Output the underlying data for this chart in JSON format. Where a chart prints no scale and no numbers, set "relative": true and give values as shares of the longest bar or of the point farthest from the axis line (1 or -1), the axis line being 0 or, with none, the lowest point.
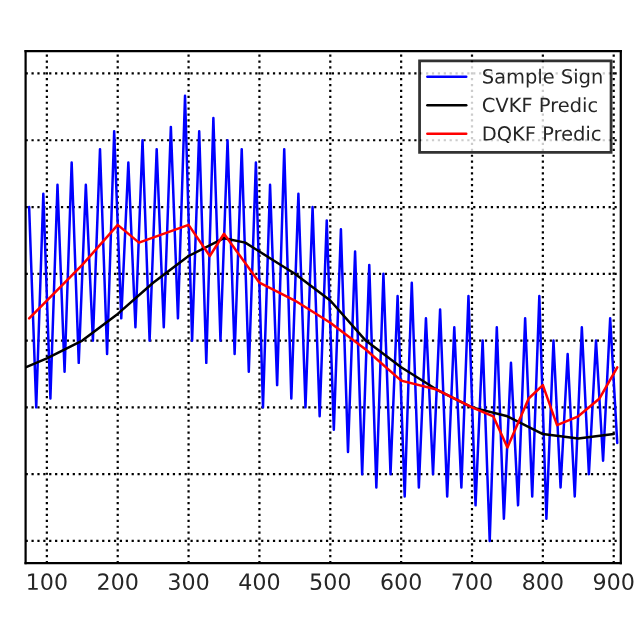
{
  "chart_data": {
    "type": "line",
    "relative": true,
    "xlim": [
      70,
      910
    ],
    "xticks": [
      100,
      200,
      300,
      400,
      500,
      600,
      700,
      800,
      900
    ],
    "grid": true,
    "legend": "top right",
    "tick_labels": "x",
    "line_style": "solid",
    "marker": "none",
    "series": [
      {
        "name": "Sample Sign",
        "color": "#0000ff",
        "x": [
          75,
          85,
          95,
          105,
          115,
          125,
          135,
          145,
          155,
          165,
          175,
          185,
          195,
          205,
          215,
          225,
          235,
          245,
          255,
          265,
          275,
          285,
          295,
          305,
          315,
          325,
          335,
          345,
          355,
          365,
          375,
          385,
          395,
          405,
          415,
          425,
          435,
          445,
          455,
          465,
          475,
          485,
          495,
          505,
          515,
          525,
          535,
          545,
          555,
          565,
          575,
          585,
          595,
          605,
          615,
          625,
          635,
          645,
          655,
          665,
          675,
          685,
          695,
          705,
          715,
          725,
          735,
          745,
          755,
          765,
          775,
          785,
          795,
          805,
          815,
          825,
          835,
          845,
          855,
          865,
          875,
          885,
          895,
          905
        ],
        "values": [
          0.75,
          0.3,
          0.78,
          0.32,
          0.8,
          0.38,
          0.85,
          0.4,
          0.8,
          0.45,
          0.88,
          0.42,
          0.92,
          0.5,
          0.85,
          0.48,
          0.9,
          0.45,
          0.88,
          0.48,
          0.93,
          0.5,
          1.0,
          0.45,
          0.92,
          0.4,
          0.95,
          0.45,
          0.9,
          0.42,
          0.88,
          0.38,
          0.85,
          0.3,
          0.8,
          0.35,
          0.88,
          0.32,
          0.78,
          0.3,
          0.75,
          0.28,
          0.72,
          0.25,
          0.7,
          0.2,
          0.65,
          0.15,
          0.62,
          0.12,
          0.6,
          0.15,
          0.55,
          0.1,
          0.58,
          0.12,
          0.5,
          0.15,
          0.52,
          0.1,
          0.48,
          0.12,
          0.55,
          0.08,
          0.45,
          0.0,
          0.48,
          0.05,
          0.4,
          0.08,
          0.5,
          0.1,
          0.55,
          0.05,
          0.45,
          0.12,
          0.42,
          0.1,
          0.48,
          0.15,
          0.45,
          0.18,
          0.5,
          0.22
        ]
      },
      {
        "name": "CVKF Predic",
        "color": "#000000",
        "x": [
          70,
          100,
          150,
          200,
          250,
          300,
          350,
          380,
          420,
          450,
          500,
          550,
          600,
          650,
          700,
          750,
          800,
          850,
          900
        ],
        "values": [
          0.39,
          0.41,
          0.45,
          0.51,
          0.58,
          0.64,
          0.68,
          0.67,
          0.63,
          0.6,
          0.54,
          0.45,
          0.39,
          0.34,
          0.3,
          0.28,
          0.24,
          0.23,
          0.24
        ]
      },
      {
        "name": "DQKF Predic",
        "color": "#ff0000",
        "x": [
          75,
          100,
          150,
          200,
          230,
          300,
          330,
          350,
          400,
          450,
          500,
          550,
          600,
          650,
          700,
          730,
          750,
          780,
          800,
          820,
          850,
          880,
          905
        ],
        "values": [
          0.5,
          0.54,
          0.62,
          0.71,
          0.67,
          0.71,
          0.64,
          0.69,
          0.58,
          0.54,
          0.49,
          0.43,
          0.36,
          0.34,
          0.3,
          0.28,
          0.21,
          0.32,
          0.35,
          0.26,
          0.28,
          0.32,
          0.39
        ]
      }
    ]
  }
}
